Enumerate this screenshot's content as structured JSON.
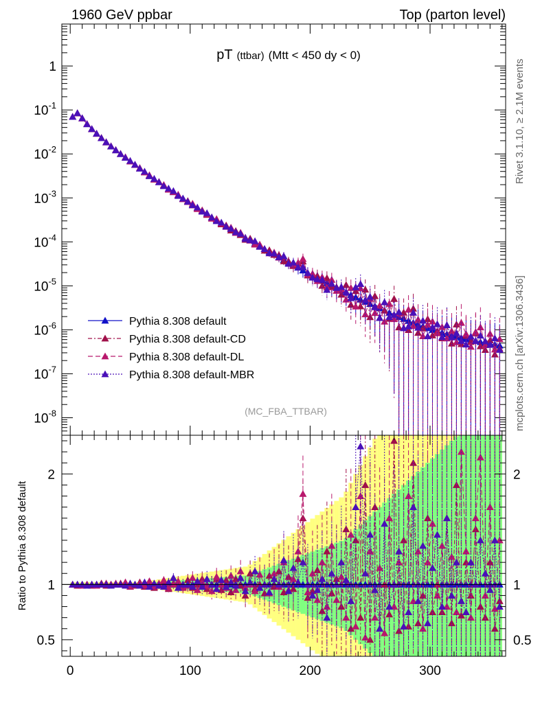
{
  "header": {
    "left": "1960 GeV ppbar",
    "right": "Top (parton level)"
  },
  "side_labels": {
    "rivet": "Rivet 3.1.10, ≥ 2.1M events",
    "mcplots": "mcplots.cern.ch [arXiv:1306.3436]"
  },
  "chart_data": {
    "type": "line",
    "title_main": "pT",
    "title_sub": "(ttbar)",
    "title_rest": "(Mtt < 450 dy < 0)",
    "watermark": "(MC_FBA_TTBAR)",
    "xlabel": "",
    "ylabel": "",
    "ratio_ylabel": "Ratio to Pythia 8.308 default",
    "xlim": [
      -7,
      363
    ],
    "ylim": [
      4e-09,
      9
    ],
    "y_log": true,
    "ratio_ylim": [
      0.35,
      2.35
    ],
    "x_ticks": [
      "0",
      "100",
      "200",
      "300"
    ],
    "x_tick_values": [
      0,
      100,
      200,
      300
    ],
    "y_ticks": [
      "10^-8",
      "10^-7",
      "10^-6",
      "10^-5",
      "10^-4",
      "10^-3",
      "10^-2",
      "10^-1",
      "1"
    ],
    "y_tick_values": [
      1e-08,
      1e-07,
      1e-06,
      1e-05,
      0.0001,
      0.001,
      0.01,
      0.1,
      1
    ],
    "ratio_ticks": [
      "0.5",
      "1",
      "2"
    ],
    "ratio_tick_values": [
      0.5,
      1,
      2
    ],
    "legend_position": "lower-left",
    "series": [
      {
        "name": "Pythia 8.308 default",
        "color": "#1010c8",
        "dash": "",
        "ref": true
      },
      {
        "name": "Pythia 8.308 default-CD",
        "color": "#a0104a",
        "dash": "6,3,2,3"
      },
      {
        "name": "Pythia 8.308 default-DL",
        "color": "#b8186c",
        "dash": "7,4"
      },
      {
        "name": "Pythia 8.308 default-MBR",
        "color": "#4a10b8",
        "dash": "2,2"
      }
    ],
    "x": [
      2,
      6,
      10,
      14,
      18,
      22,
      26,
      30,
      34,
      38,
      42,
      46,
      50,
      54,
      58,
      62,
      66,
      70,
      74,
      78,
      82,
      86,
      90,
      94,
      98,
      102,
      106,
      110,
      114,
      118,
      122,
      126,
      130,
      134,
      138,
      142,
      146,
      150,
      154,
      158,
      162,
      166,
      170,
      174,
      178,
      182,
      186,
      190,
      194,
      198,
      202,
      206,
      210,
      214,
      218,
      222,
      226,
      230,
      234,
      238,
      242,
      246,
      250,
      254,
      258,
      262,
      266,
      270,
      274,
      278,
      282,
      286,
      290,
      294,
      298,
      302,
      306,
      310,
      314,
      318,
      322,
      326,
      330,
      334,
      338,
      342,
      346,
      350,
      354,
      358
    ],
    "reference_y": [
      0.07,
      0.085,
      0.065,
      0.048,
      0.037,
      0.029,
      0.023,
      0.0185,
      0.015,
      0.0122,
      0.01,
      0.0083,
      0.0069,
      0.0057,
      0.0047,
      0.0039,
      0.0032,
      0.0027,
      0.0023,
      0.0019,
      0.00161,
      0.00136,
      0.00115,
      0.00097,
      0.00082,
      0.0007,
      0.00059,
      0.0005,
      0.00043,
      0.00036,
      0.00031,
      0.000265,
      0.000228,
      0.000196,
      0.000169,
      0.000145,
      0.000125,
      0.000108,
      9.3e-05,
      8e-05,
      6.9e-05,
      6e-05,
      5.2e-05,
      4.5e-05,
      3.9e-05,
      3.4e-05,
      2.95e-05,
      2.6e-05,
      2.25e-05,
      1.97e-05,
      1.72e-05,
      1.5e-05,
      1.32e-05,
      1.16e-05,
      1.02e-05,
      9e-06,
      7.9e-06,
      7e-06,
      6.2e-06,
      5.5e-06,
      4.9e-06,
      4.35e-06,
      3.9e-06,
      3.45e-06,
      3.1e-06,
      2.75e-06,
      2.45e-06,
      2.2e-06,
      1.97e-06,
      1.77e-06,
      1.6e-06,
      1.45e-06,
      1.32e-06,
      1.2e-06,
      1.1e-06,
      1e-06,
      9.3e-07,
      8.6e-07,
      8e-07,
      7.5e-07,
      7e-07,
      6.6e-07,
      6.2e-07,
      5.9e-07,
      5.6e-07,
      5.3e-07,
      5e-07,
      4.8e-07,
      4.6e-07,
      4.4e-07
    ],
    "ratios": [
      [
        1.0,
        1.0,
        1.0,
        1.0,
        1.0,
        1.0,
        1.0,
        1.0,
        1.0,
        1.0,
        1.0,
        1.0,
        1.0,
        1.0,
        1.0,
        1.0,
        1.0,
        1.0,
        1.0,
        1.0,
        1.0,
        1.0,
        1.0,
        1.0,
        1.0,
        1.0,
        1.0,
        1.0,
        1.0,
        1.0,
        1.0,
        1.0,
        1.0,
        1.0,
        1.0,
        1.0,
        1.0,
        1.0,
        1.0,
        1.0,
        1.0,
        1.0,
        1.0,
        1.0,
        1.0,
        1.0,
        1.0,
        1.0,
        1.0,
        1.0,
        1.0,
        1.0,
        1.0,
        1.0,
        1.0,
        1.0,
        1.0,
        1.0,
        1.0,
        1.0,
        1.0,
        1.0,
        1.0,
        1.0,
        1.0,
        1.0,
        1.0,
        1.0,
        1.0,
        1.0,
        1.0,
        1.0,
        1.0,
        1.0,
        1.0,
        1.0,
        1.0,
        1.0,
        1.0,
        1.0,
        1.0,
        1.0,
        1.0,
        1.0,
        1.0,
        1.0,
        1.0,
        1.0,
        1.0,
        1.0
      ],
      [
        1.0,
        0.99,
        1.0,
        1.0,
        0.99,
        1.0,
        1.01,
        0.99,
        1.0,
        1.0,
        1.01,
        1.0,
        1.0,
        0.99,
        1.02,
        0.98,
        1.02,
        0.97,
        1.0,
        1.03,
        0.96,
        1.01,
        1.02,
        0.98,
        1.04,
        0.97,
        1.0,
        1.05,
        0.96,
        1.0,
        1.05,
        0.95,
        1.04,
        0.93,
        1.05,
        0.99,
        0.9,
        1.1,
        0.96,
        1.0,
        0.92,
        1.08,
        0.98,
        1.12,
        0.93,
        1.07,
        0.96,
        1.23,
        1.6,
        0.88,
        0.94,
        1.13,
        0.76,
        1.3,
        0.92,
        1.05,
        0.8,
        1.5,
        0.6,
        1.4,
        0.7,
        1.9,
        0.5,
        1.7,
        0.6,
        1.0,
        0.73,
        2.3,
        0.58,
        1.4,
        0.62,
        2.1,
        0.65,
        0.9,
        1.6,
        0.75,
        1.0,
        0.75,
        1.6,
        0.65,
        1.9,
        0.72,
        1.2,
        0.9,
        1.5,
        0.8,
        0.7,
        1.2,
        0.6,
        0.85
      ],
      [
        1.0,
        1.0,
        0.99,
        1.0,
        1.0,
        0.99,
        1.0,
        1.01,
        1.0,
        1.01,
        1.0,
        1.02,
        0.98,
        1.0,
        1.01,
        0.99,
        1.03,
        0.98,
        1.01,
        1.04,
        0.97,
        1.0,
        1.03,
        0.97,
        0.99,
        1.06,
        0.95,
        1.02,
        0.99,
        0.94,
        1.07,
        1.0,
        0.97,
        1.08,
        0.95,
        1.12,
        0.97,
        1.0,
        0.94,
        1.09,
        1.0,
        0.92,
        1.1,
        0.98,
        1.2,
        0.95,
        1.05,
        1.3,
        1.82,
        0.93,
        1.1,
        0.86,
        1.2,
        0.8,
        1.35,
        0.86,
        1.07,
        0.7,
        1.45,
        0.62,
        1.8,
        0.52,
        1.3,
        0.7,
        1.15,
        0.56,
        1.6,
        0.8,
        1.2,
        0.62,
        1.8,
        0.85,
        1.3,
        0.6,
        1.2,
        1.55,
        0.9,
        1.35,
        0.8,
        1.25,
        0.75,
        2.2,
        1.3,
        0.7,
        1.6,
        2.15,
        0.9,
        1.7,
        0.78,
        1.4
      ],
      [
        1.0,
        1.0,
        1.0,
        0.99,
        1.0,
        1.0,
        1.0,
        1.0,
        0.99,
        1.0,
        1.0,
        0.99,
        1.01,
        1.0,
        0.99,
        1.02,
        0.98,
        1.01,
        0.99,
        0.98,
        1.02,
        1.06,
        0.97,
        1.0,
        1.0,
        0.98,
        1.03,
        0.98,
        1.05,
        1.0,
        0.96,
        1.04,
        0.98,
        1.02,
        0.99,
        1.06,
        0.94,
        1.02,
        1.12,
        0.97,
        1.0,
        0.93,
        1.05,
        1.0,
        1.22,
        0.94,
        1.15,
        1.02,
        1.2,
        1.0,
        0.9,
        0.95,
        1.05,
        0.7,
        1.1,
        1.0,
        1.2,
        1.04,
        0.85,
        1.7,
        2.25,
        1.1,
        1.45,
        0.95,
        0.6,
        1.55,
        0.8,
        1.0,
        1.3,
        0.62,
        0.75,
        1.7,
        0.85,
        1.35,
        0.65,
        1.15,
        1.45,
        0.8,
        1.6,
        0.9,
        1.2,
        0.85,
        0.75,
        1.2,
        1.0,
        1.4,
        1.1,
        0.95,
        1.4,
        0.8
      ]
    ]
  }
}
